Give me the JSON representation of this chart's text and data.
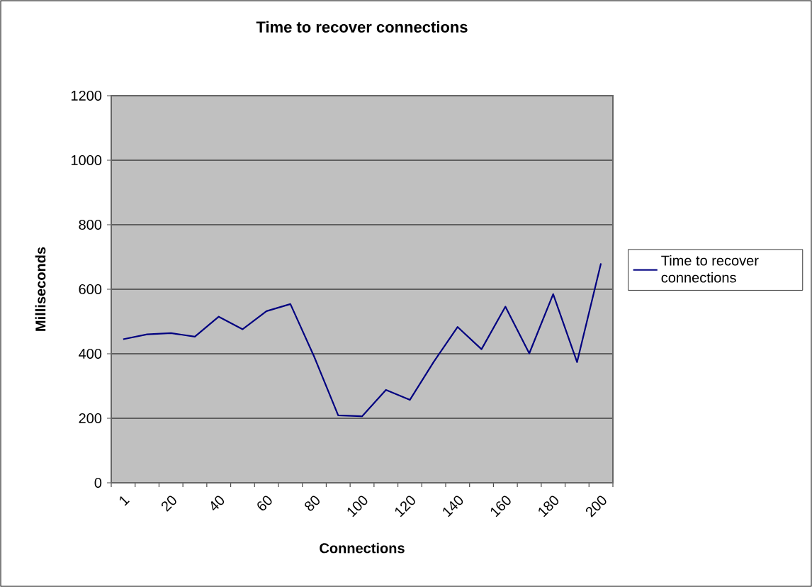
{
  "chart_data": {
    "type": "line",
    "title": "Time to recover connections",
    "xlabel": "Connections",
    "ylabel": "Milliseconds",
    "categories": [
      "1",
      null,
      "20",
      null,
      "40",
      null,
      "60",
      null,
      "80",
      null,
      "100",
      null,
      "120",
      null,
      "140",
      null,
      "160",
      null,
      "180",
      null,
      "200"
    ],
    "series": [
      {
        "name": "Time to recover connections",
        "color": "#000080",
        "values": [
          445,
          460,
          464,
          453,
          515,
          476,
          532,
          554,
          390,
          209,
          206,
          288,
          257,
          375,
          483,
          414,
          546,
          401,
          585,
          374,
          680
        ]
      }
    ],
    "ylim": [
      0,
      1200
    ],
    "yticks": [
      0,
      200,
      400,
      600,
      800,
      1000,
      1200
    ],
    "grid": "y",
    "legend": "right",
    "marker": "none",
    "line_style": "solid"
  }
}
